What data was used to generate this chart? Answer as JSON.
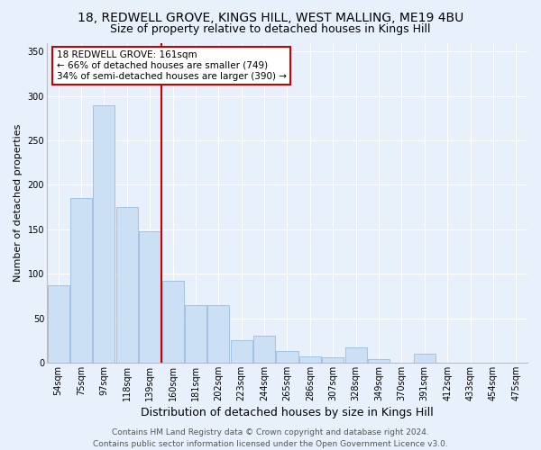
{
  "title": "18, REDWELL GROVE, KINGS HILL, WEST MALLING, ME19 4BU",
  "subtitle": "Size of property relative to detached houses in Kings Hill",
  "xlabel": "Distribution of detached houses by size in Kings Hill",
  "ylabel": "Number of detached properties",
  "bar_labels": [
    "54sqm",
    "75sqm",
    "97sqm",
    "118sqm",
    "139sqm",
    "160sqm",
    "181sqm",
    "202sqm",
    "223sqm",
    "244sqm",
    "265sqm",
    "286sqm",
    "307sqm",
    "328sqm",
    "349sqm",
    "370sqm",
    "391sqm",
    "412sqm",
    "433sqm",
    "454sqm",
    "475sqm"
  ],
  "bar_values": [
    87,
    185,
    290,
    175,
    148,
    92,
    65,
    65,
    25,
    30,
    13,
    7,
    6,
    17,
    4,
    0,
    10,
    0,
    0,
    0,
    0
  ],
  "bar_color": "#cce0f5",
  "bar_edge_color": "#8ab4d8",
  "vline_index": 5,
  "vline_color": "#cc0000",
  "annotation_line1": "18 REDWELL GROVE: 161sqm",
  "annotation_line2": "← 66% of detached houses are smaller (749)",
  "annotation_line3": "34% of semi-detached houses are larger (390) →",
  "annotation_box_color": "#ffffff",
  "annotation_box_edge": "#cc0000",
  "ylim": [
    0,
    360
  ],
  "yticks": [
    0,
    50,
    100,
    150,
    200,
    250,
    300,
    350
  ],
  "bg_color": "#e8f0fb",
  "plot_bg_color": "#e8f0fb",
  "footer": "Contains HM Land Registry data © Crown copyright and database right 2024.\nContains public sector information licensed under the Open Government Licence v3.0.",
  "title_fontsize": 10,
  "subtitle_fontsize": 9,
  "tick_fontsize": 7,
  "xlabel_fontsize": 9,
  "ylabel_fontsize": 8,
  "annotation_fontsize": 7.5,
  "footer_fontsize": 6.5
}
